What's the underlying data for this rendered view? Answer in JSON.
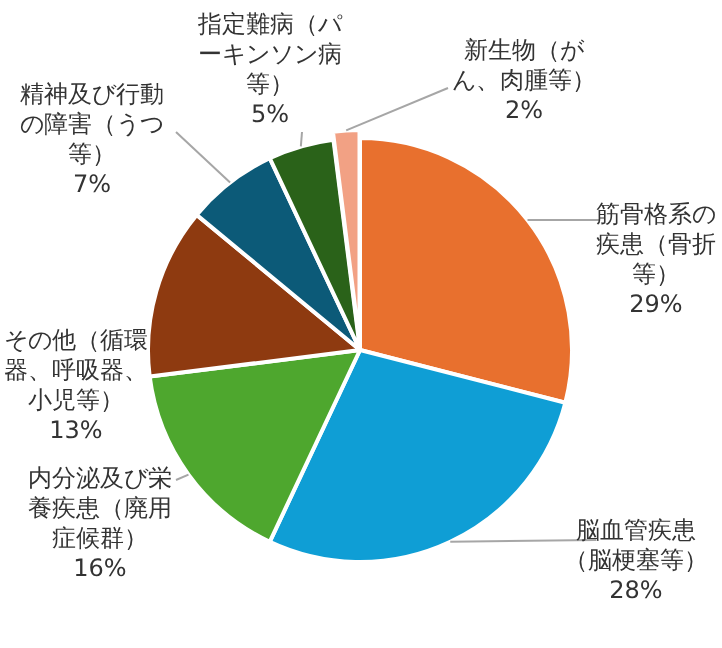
{
  "chart_data": {
    "type": "pie",
    "categories": [
      "筋骨格系の疾患（骨折等）",
      "脳血管疾患（脳梗塞等）",
      "内分泌及び栄養疾患（廃用症候群）",
      "その他（循環器、呼吸器、小児等）",
      "精神及び行動の障害（うつ等）",
      "指定難病（パーキンソン病等）",
      "新生物（がん、肉腫等）"
    ],
    "values": [
      29,
      28,
      16,
      13,
      7,
      5,
      2
    ],
    "value_labels": [
      "29%",
      "28%",
      "16%",
      "13%",
      "7%",
      "5%",
      "2%"
    ],
    "colors": [
      "#e8702e",
      "#0f9ed5",
      "#4ea72e",
      "#8e3a10",
      "#0c5a78",
      "#2a6219",
      "#f2a184"
    ]
  }
}
